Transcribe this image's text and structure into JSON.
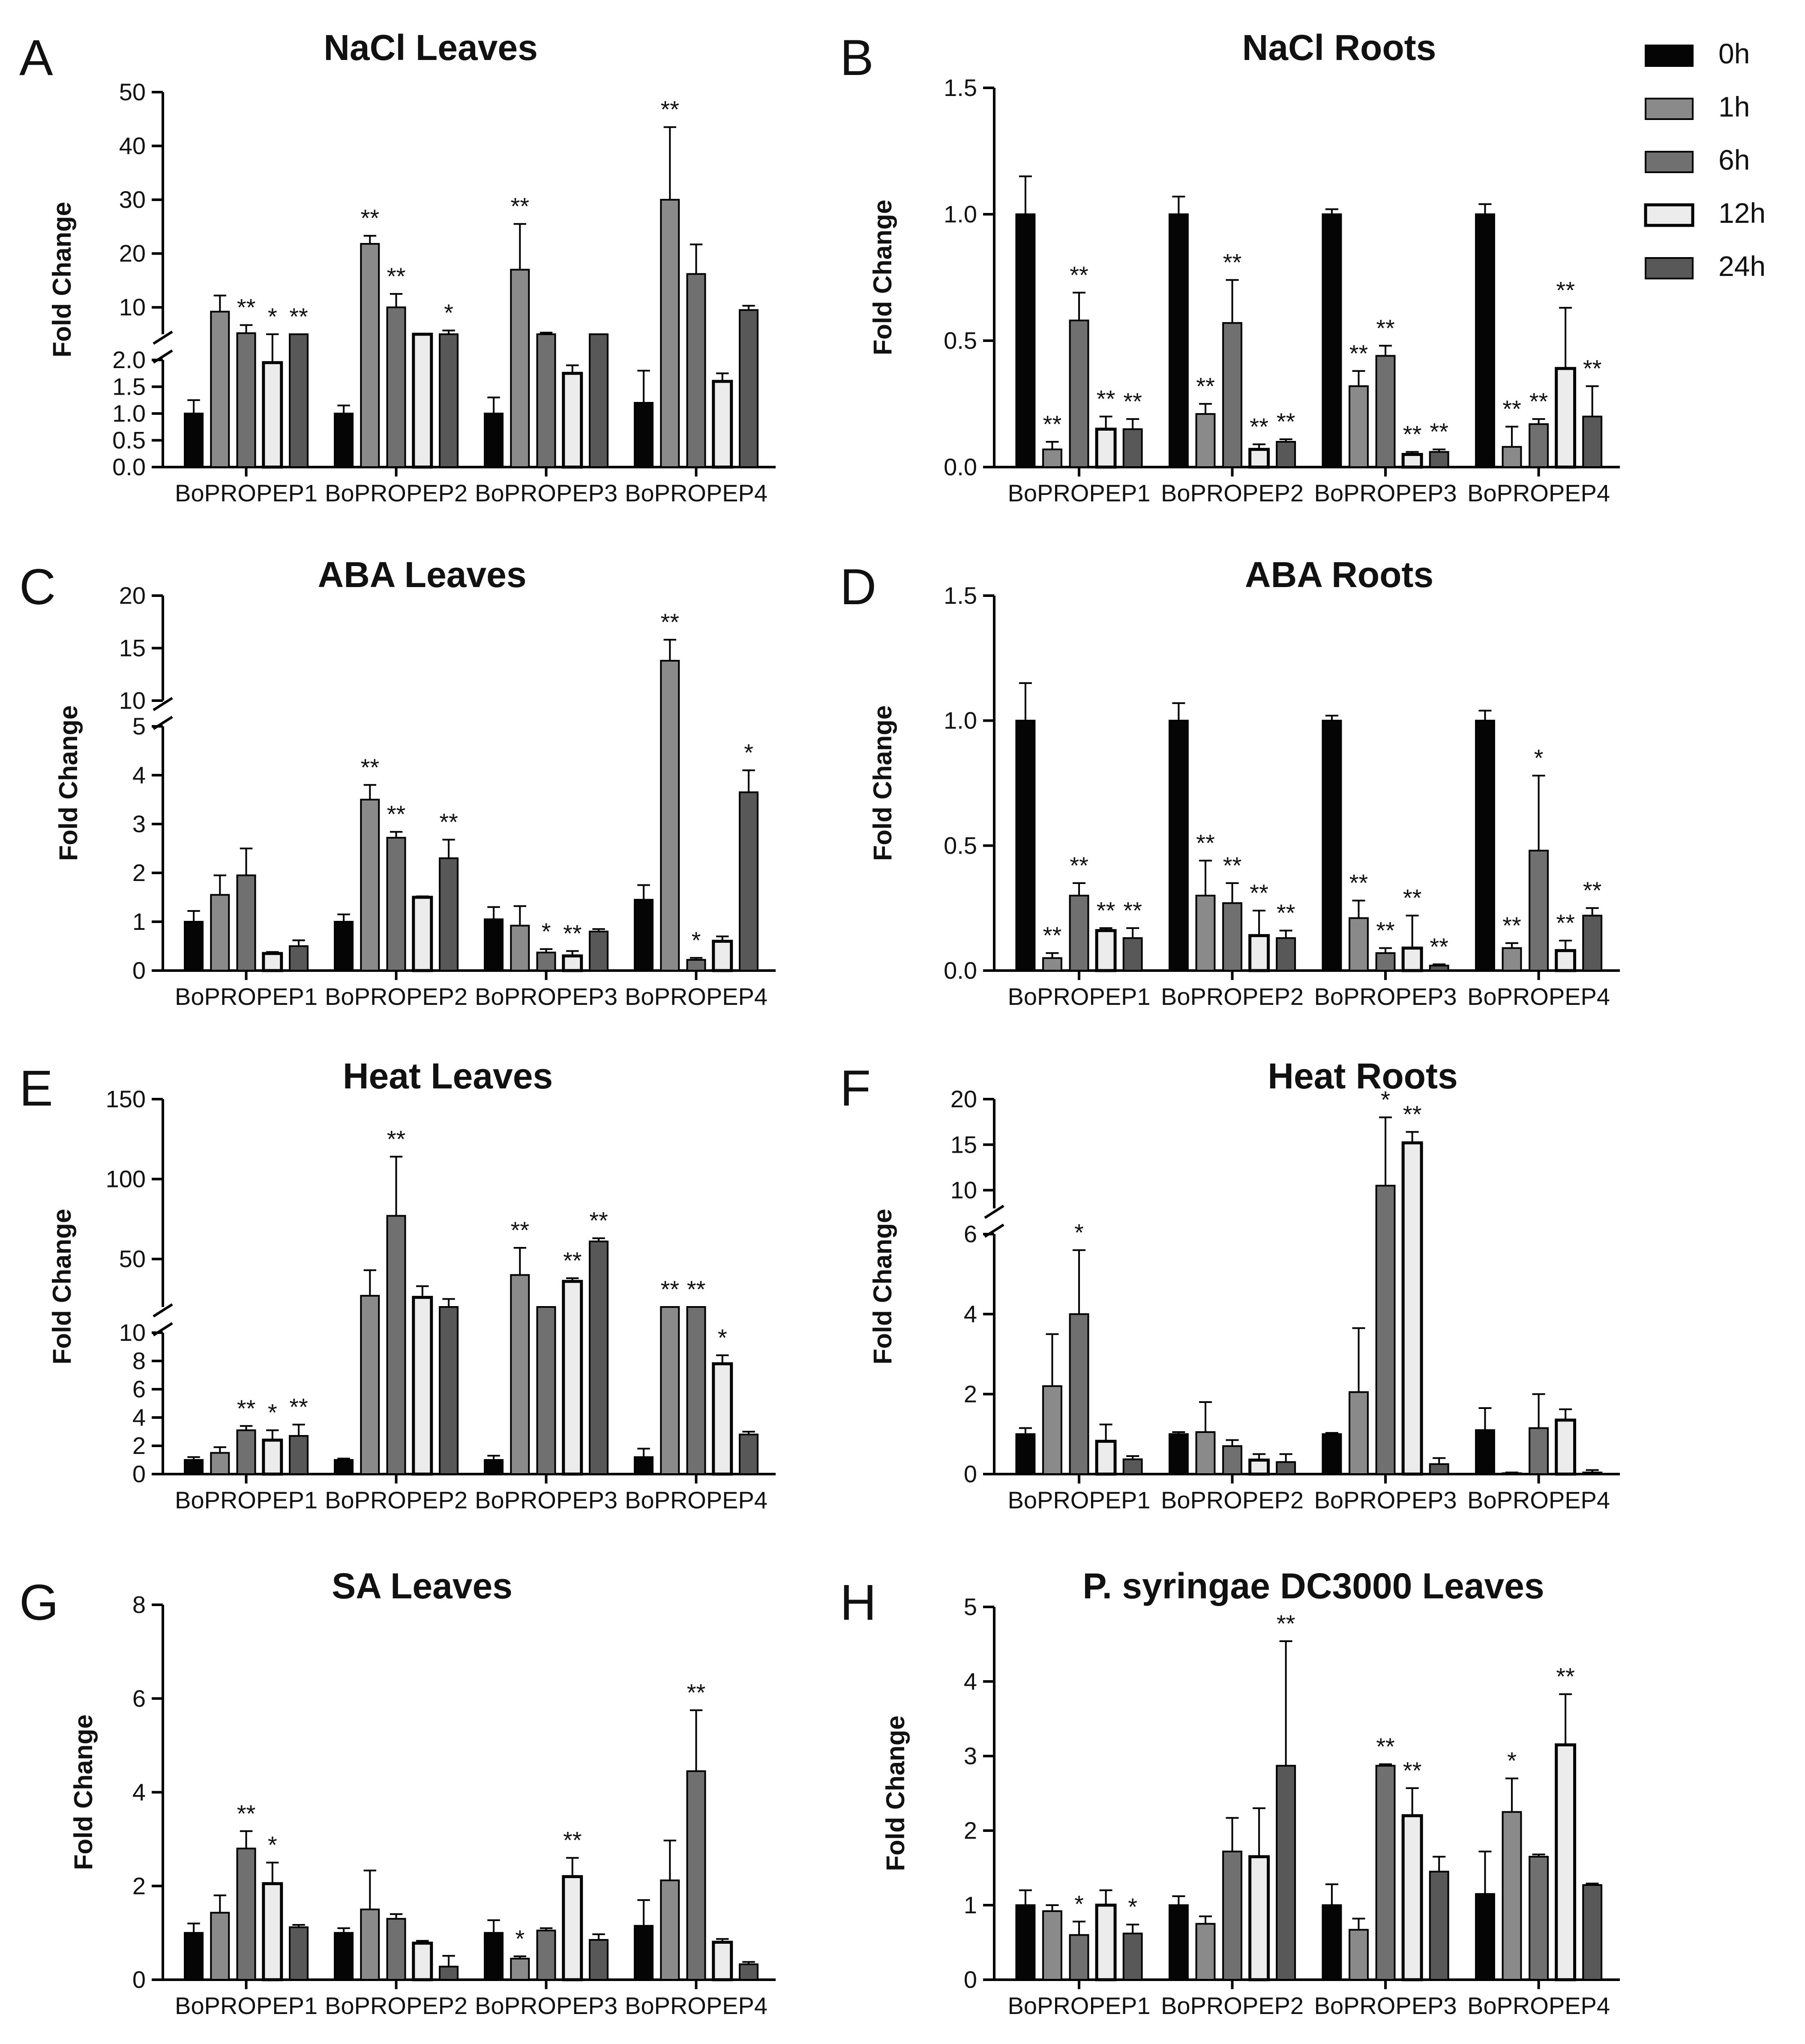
{
  "chart_data": [
    {
      "type": "bar",
      "panel_label": "A",
      "title": "NaCl Leaves",
      "ylabel": "Fold Change",
      "categories": [
        "BoPROPEP1",
        "BoPROPEP2",
        "BoPROPEP3",
        "BoPROPEP4"
      ],
      "axis_break": {
        "lower": [
          0,
          2.0
        ],
        "upper": [
          5,
          50
        ]
      },
      "yticks_lower": [
        "0.0",
        "0.5",
        "1.0",
        "1.5",
        "2.0"
      ],
      "yticks_upper": [
        "10",
        "20",
        "30",
        "40",
        "50"
      ],
      "series": [
        {
          "name": "0h",
          "values": [
            1.0,
            1.0,
            1.0,
            1.2
          ],
          "errors": [
            0.25,
            0.15,
            0.3,
            0.6
          ],
          "sig": [
            "",
            "",
            "",
            ""
          ]
        },
        {
          "name": "1h",
          "values": [
            9.2,
            21.8,
            17.0,
            30.0
          ],
          "errors": [
            3.0,
            1.5,
            8.5,
            13.5
          ],
          "sig": [
            "",
            "**",
            "**",
            "**"
          ]
        },
        {
          "name": "6h",
          "values": [
            5.2,
            10.0,
            3.8,
            16.2
          ],
          "errors": [
            1.5,
            2.5,
            1.5,
            5.5
          ],
          "sig": [
            "**",
            "**",
            "",
            ""
          ]
        },
        {
          "name": "12h",
          "values": [
            1.95,
            2.5,
            1.75,
            1.6
          ],
          "errors": [
            0.1,
            0.3,
            0.15,
            0.15
          ],
          "sig": [
            "*",
            "",
            "",
            ""
          ]
        },
        {
          "name": "24h",
          "values": [
            3.8,
            4.5,
            3.8,
            9.5
          ],
          "errors": [
            1.0,
            1.2,
            1.2,
            0.8
          ],
          "sig": [
            "**",
            "*",
            "",
            ""
          ]
        }
      ]
    },
    {
      "type": "bar",
      "panel_label": "B",
      "title": "NaCl Roots",
      "ylabel": "Fold Change",
      "categories": [
        "BoPROPEP1",
        "BoPROPEP2",
        "BoPROPEP3",
        "BoPROPEP4"
      ],
      "ylim": [
        0,
        1.5
      ],
      "yticks": [
        "0.0",
        "0.5",
        "1.0",
        "1.5"
      ],
      "series": [
        {
          "name": "0h",
          "values": [
            1.0,
            1.0,
            1.0,
            1.0
          ],
          "errors": [
            0.15,
            0.07,
            0.02,
            0.04
          ],
          "sig": [
            "",
            "",
            "",
            ""
          ]
        },
        {
          "name": "1h",
          "values": [
            0.07,
            0.21,
            0.32,
            0.08
          ],
          "errors": [
            0.03,
            0.04,
            0.06,
            0.08
          ],
          "sig": [
            "**",
            "**",
            "**",
            "**"
          ]
        },
        {
          "name": "6h",
          "values": [
            0.58,
            0.57,
            0.44,
            0.17
          ],
          "errors": [
            0.11,
            0.17,
            0.04,
            0.02
          ],
          "sig": [
            "**",
            "**",
            "**",
            "**"
          ]
        },
        {
          "name": "12h",
          "values": [
            0.15,
            0.07,
            0.05,
            0.39
          ],
          "errors": [
            0.05,
            0.02,
            0.01,
            0.24
          ],
          "sig": [
            "**",
            "**",
            "**",
            "**"
          ]
        },
        {
          "name": "24h",
          "values": [
            0.15,
            0.1,
            0.06,
            0.2
          ],
          "errors": [
            0.04,
            0.01,
            0.01,
            0.12
          ],
          "sig": [
            "**",
            "**",
            "**",
            "**"
          ]
        }
      ]
    },
    {
      "type": "bar",
      "panel_label": "C",
      "title": "ABA Leaves",
      "ylabel": "Fold Change",
      "categories": [
        "BoPROPEP1",
        "BoPROPEP2",
        "BoPROPEP3",
        "BoPROPEP4"
      ],
      "axis_break": {
        "lower": [
          0,
          5
        ],
        "upper": [
          10,
          20
        ]
      },
      "yticks_lower": [
        "0",
        "1",
        "2",
        "3",
        "4",
        "5"
      ],
      "yticks_upper": [
        "10",
        "15",
        "20"
      ],
      "series": [
        {
          "name": "0h",
          "values": [
            1.0,
            1.0,
            1.05,
            1.45
          ],
          "errors": [
            0.22,
            0.15,
            0.25,
            0.3
          ],
          "sig": [
            "",
            "",
            "",
            ""
          ]
        },
        {
          "name": "1h",
          "values": [
            1.55,
            3.5,
            0.92,
            13.8
          ],
          "errors": [
            0.4,
            0.3,
            0.4,
            2.0
          ],
          "sig": [
            "",
            "**",
            "",
            "**"
          ]
        },
        {
          "name": "6h",
          "values": [
            1.95,
            2.72,
            0.37,
            0.22
          ],
          "errors": [
            0.55,
            0.12,
            0.07,
            0.04
          ],
          "sig": [
            "",
            "**",
            "*",
            "*"
          ]
        },
        {
          "name": "12h",
          "values": [
            0.35,
            1.5,
            0.3,
            0.6
          ],
          "errors": [
            0.03,
            0.02,
            0.1,
            0.1
          ],
          "sig": [
            "",
            "",
            "**",
            ""
          ]
        },
        {
          "name": "24h",
          "values": [
            0.5,
            2.3,
            0.8,
            3.65
          ],
          "errors": [
            0.12,
            0.38,
            0.05,
            0.45
          ],
          "sig": [
            "",
            "**",
            "",
            "*"
          ]
        }
      ]
    },
    {
      "type": "bar",
      "panel_label": "D",
      "title": "ABA Roots",
      "ylabel": "Fold Change",
      "categories": [
        "BoPROPEP1",
        "BoPROPEP2",
        "BoPROPEP3",
        "BoPROPEP4"
      ],
      "ylim": [
        0,
        1.5
      ],
      "yticks": [
        "0.0",
        "0.5",
        "1.0",
        "1.5"
      ],
      "series": [
        {
          "name": "0h",
          "values": [
            1.0,
            1.0,
            1.0,
            1.0
          ],
          "errors": [
            0.15,
            0.07,
            0.02,
            0.04
          ],
          "sig": [
            "",
            "",
            "",
            ""
          ]
        },
        {
          "name": "1h",
          "values": [
            0.05,
            0.3,
            0.21,
            0.09
          ],
          "errors": [
            0.02,
            0.14,
            0.07,
            0.02
          ],
          "sig": [
            "**",
            "**",
            "**",
            "**"
          ]
        },
        {
          "name": "6h",
          "values": [
            0.3,
            0.27,
            0.07,
            0.48
          ],
          "errors": [
            0.05,
            0.08,
            0.02,
            0.3
          ],
          "sig": [
            "**",
            "**",
            "**",
            "*"
          ]
        },
        {
          "name": "12h",
          "values": [
            0.16,
            0.14,
            0.09,
            0.08
          ],
          "errors": [
            0.01,
            0.1,
            0.13,
            0.04
          ],
          "sig": [
            "**",
            "**",
            "**",
            "**"
          ]
        },
        {
          "name": "24h",
          "values": [
            0.13,
            0.13,
            0.02,
            0.22
          ],
          "errors": [
            0.04,
            0.03,
            0.005,
            0.03
          ],
          "sig": [
            "**",
            "**",
            "**",
            "**"
          ]
        }
      ]
    },
    {
      "type": "bar",
      "panel_label": "E",
      "title": "Heat Leaves",
      "ylabel": "Fold Change",
      "categories": [
        "BoPROPEP1",
        "BoPROPEP2",
        "BoPROPEP3",
        "BoPROPEP4"
      ],
      "axis_break": {
        "lower": [
          0,
          10
        ],
        "upper": [
          20,
          150
        ]
      },
      "yticks_lower": [
        "0",
        "2",
        "4",
        "6",
        "8",
        "10"
      ],
      "yticks_upper": [
        "50",
        "100",
        "150"
      ],
      "series": [
        {
          "name": "0h",
          "values": [
            1.0,
            1.0,
            1.0,
            1.2
          ],
          "errors": [
            0.2,
            0.1,
            0.3,
            0.6
          ],
          "sig": [
            "",
            "",
            "",
            ""
          ]
        },
        {
          "name": "1h",
          "values": [
            1.5,
            27,
            40,
            11
          ],
          "errors": [
            0.4,
            16,
            17,
            2
          ],
          "sig": [
            "",
            "",
            "**",
            "**"
          ]
        },
        {
          "name": "6h",
          "values": [
            3.1,
            77,
            15,
            14
          ],
          "errors": [
            0.3,
            37,
            1,
            6
          ],
          "sig": [
            "**",
            "**",
            "",
            "**"
          ]
        },
        {
          "name": "12h",
          "values": [
            2.4,
            26,
            36,
            7.8
          ],
          "errors": [
            0.7,
            7,
            2,
            0.6
          ],
          "sig": [
            "*",
            "",
            "**",
            "*"
          ]
        },
        {
          "name": "24h",
          "values": [
            2.7,
            20,
            61,
            2.8
          ],
          "errors": [
            0.8,
            5,
            2,
            0.2
          ],
          "sig": [
            "**",
            "",
            "**",
            ""
          ]
        }
      ]
    },
    {
      "type": "bar",
      "panel_label": "F",
      "title": "Heat Roots",
      "ylabel": "Fold Change",
      "categories": [
        "BoPROPEP1",
        "BoPROPEP2",
        "BoPROPEP3",
        "BoPROPEP4"
      ],
      "axis_break": {
        "lower": [
          0,
          6
        ],
        "upper": [
          8,
          20
        ]
      },
      "yticks_lower": [
        "0",
        "2",
        "4",
        "6"
      ],
      "yticks_upper": [
        "10",
        "15",
        "20"
      ],
      "series": [
        {
          "name": "0h",
          "values": [
            1.0,
            1.0,
            1.0,
            1.1
          ],
          "errors": [
            0.15,
            0.05,
            0.03,
            0.55
          ],
          "sig": [
            "",
            "",
            "",
            ""
          ]
        },
        {
          "name": "1h",
          "values": [
            2.2,
            1.05,
            2.05,
            0.02
          ],
          "errors": [
            1.3,
            0.75,
            1.6,
            0.02
          ],
          "sig": [
            "",
            "",
            "",
            ""
          ]
        },
        {
          "name": "6h",
          "values": [
            4.0,
            0.7,
            10.5,
            1.15
          ],
          "errors": [
            1.6,
            0.15,
            7.5,
            0.85
          ],
          "sig": [
            "*",
            "",
            "*",
            ""
          ]
        },
        {
          "name": "12h",
          "values": [
            0.82,
            0.35,
            15.2,
            1.35
          ],
          "errors": [
            0.42,
            0.15,
            1.2,
            0.27
          ],
          "sig": [
            "",
            "",
            "**",
            ""
          ]
        },
        {
          "name": "24h",
          "values": [
            0.37,
            0.3,
            0.25,
            0.04
          ],
          "errors": [
            0.08,
            0.2,
            0.15,
            0.06
          ],
          "sig": [
            "",
            "",
            "",
            ""
          ]
        }
      ]
    },
    {
      "type": "bar",
      "panel_label": "G",
      "title": "SA Leaves",
      "ylabel": "Fold Change",
      "categories": [
        "BoPROPEP1",
        "BoPROPEP2",
        "BoPROPEP3",
        "BoPROPEP4"
      ],
      "ylim": [
        0,
        8
      ],
      "yticks": [
        "0",
        "2",
        "4",
        "6",
        "8"
      ],
      "series": [
        {
          "name": "0h",
          "values": [
            1.0,
            1.0,
            1.0,
            1.15
          ],
          "errors": [
            0.2,
            0.1,
            0.27,
            0.55
          ],
          "sig": [
            "",
            "",
            "",
            ""
          ]
        },
        {
          "name": "1h",
          "values": [
            1.43,
            1.5,
            0.45,
            2.12
          ],
          "errors": [
            0.37,
            0.83,
            0.05,
            0.85
          ],
          "sig": [
            "",
            "",
            "*",
            ""
          ]
        },
        {
          "name": "6h",
          "values": [
            2.8,
            1.3,
            1.05,
            4.45
          ],
          "errors": [
            0.37,
            0.1,
            0.05,
            1.3
          ],
          "sig": [
            "**",
            "",
            "",
            "**"
          ]
        },
        {
          "name": "12h",
          "values": [
            2.05,
            0.78,
            2.2,
            0.8
          ],
          "errors": [
            0.45,
            0.05,
            0.4,
            0.07
          ],
          "sig": [
            "*",
            "",
            "**",
            ""
          ]
        },
        {
          "name": "24h",
          "values": [
            1.12,
            0.28,
            0.85,
            0.33
          ],
          "errors": [
            0.05,
            0.23,
            0.12,
            0.05
          ],
          "sig": [
            "",
            "",
            "",
            ""
          ]
        }
      ]
    },
    {
      "type": "bar",
      "panel_label": "H",
      "title": "P. syringae DC3000 Leaves",
      "ylabel": "Fold Change",
      "categories": [
        "BoPROPEP1",
        "BoPROPEP2",
        "BoPROPEP3",
        "BoPROPEP4"
      ],
      "ylim": [
        0,
        5
      ],
      "yticks": [
        "0",
        "1",
        "2",
        "3",
        "4",
        "5"
      ],
      "series": [
        {
          "name": "0h",
          "values": [
            1.0,
            1.0,
            1.0,
            1.15
          ],
          "errors": [
            0.2,
            0.12,
            0.28,
            0.57
          ],
          "sig": [
            "",
            "",
            "",
            ""
          ]
        },
        {
          "name": "1h",
          "values": [
            0.92,
            0.75,
            0.67,
            2.25
          ],
          "errors": [
            0.08,
            0.1,
            0.15,
            0.45
          ],
          "sig": [
            "",
            "",
            "",
            "*"
          ]
        },
        {
          "name": "6h",
          "values": [
            0.6,
            1.72,
            2.87,
            1.65
          ],
          "errors": [
            0.18,
            0.45,
            0.02,
            0.03
          ],
          "sig": [
            "*",
            "",
            "**",
            ""
          ]
        },
        {
          "name": "12h",
          "values": [
            1.0,
            1.65,
            2.2,
            3.15
          ],
          "errors": [
            0.2,
            0.65,
            0.37,
            0.68
          ],
          "sig": [
            "",
            "",
            "**",
            "**"
          ]
        },
        {
          "name": "24h",
          "values": [
            0.62,
            2.87,
            1.45,
            1.27
          ],
          "errors": [
            0.12,
            1.67,
            0.2,
            0.02
          ],
          "sig": [
            "*",
            "**",
            "",
            ""
          ]
        }
      ]
    }
  ],
  "legend": {
    "items": [
      "0h",
      "1h",
      "6h",
      "12h",
      "24h"
    ],
    "fills": [
      "#050505",
      "#8a8a8a",
      "#707070",
      "#ececec",
      "#585858"
    ],
    "placement": "top-right"
  }
}
